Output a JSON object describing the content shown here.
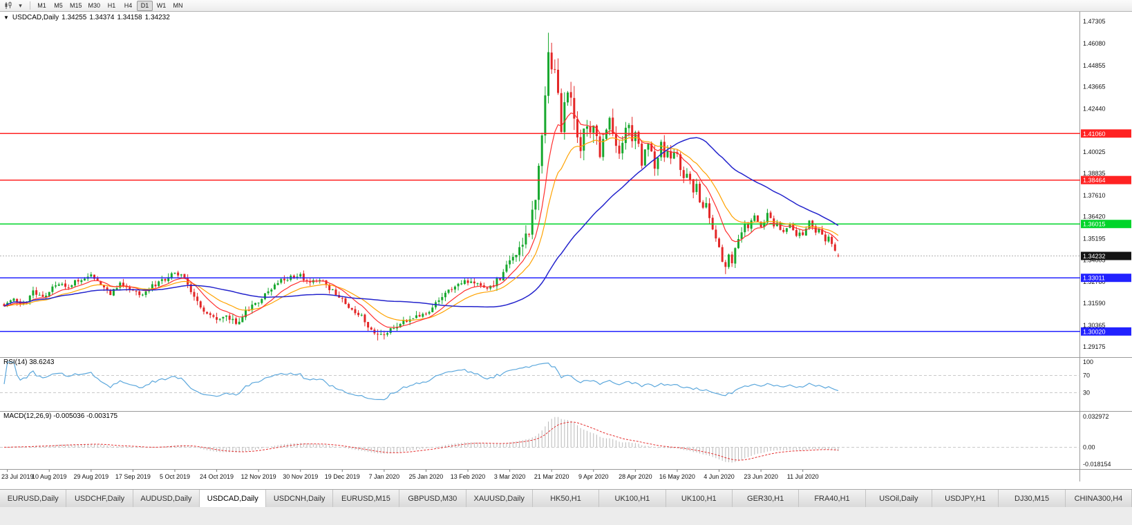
{
  "icons": {
    "dropdown": "▾",
    "one_click_arrow": "▼"
  },
  "toolbar": {
    "timeframes": [
      "M1",
      "M5",
      "M15",
      "M30",
      "H1",
      "H4",
      "D1",
      "W1",
      "MN"
    ],
    "active_timeframe": "D1"
  },
  "header": {
    "symbol_title": "USDCAD,Daily",
    "open": "1.34255",
    "high": "1.34374",
    "low": "1.34158",
    "close": "1.34232"
  },
  "colors": {
    "up": "#17a82e",
    "down": "#e32727",
    "ma_fast": "#ff2e2e",
    "ma_mid": "#ffa200",
    "ma_slow": "#2323cc",
    "rsi": "#5ba7dc",
    "macd_hist": "#b8b8b8",
    "macd_signal": "#e53030",
    "hline_red": "#ff2222",
    "hline_green": "#00d42a",
    "hline_blue": "#2222ff",
    "price_badge_bg": "#141414",
    "bid_line": "#b0b0b0"
  },
  "price_axis": {
    "labels": [
      "1.47305",
      "1.46080",
      "1.44855",
      "1.43665",
      "1.42440",
      "1.40025",
      "1.38835",
      "1.37610",
      "1.36420",
      "1.35195",
      "1.34005",
      "1.32780",
      "1.31590",
      "1.30365",
      "1.29175"
    ],
    "min": 1.2882,
    "max": 1.4762,
    "current": "1.34232",
    "current_value": 1.34232
  },
  "hlines": [
    {
      "value": 1.4106,
      "label": "1.41060",
      "color_key": "hline_red"
    },
    {
      "value": 1.38464,
      "label": "1.38464",
      "color_key": "hline_red"
    },
    {
      "value": 1.36015,
      "label": "1.36015",
      "color_key": "hline_green"
    },
    {
      "value": 1.33011,
      "label": "1.33011",
      "color_key": "hline_blue"
    },
    {
      "value": 1.3002,
      "label": "1.30020",
      "color_key": "hline_blue"
    }
  ],
  "x_axis": {
    "labels": [
      "23 Jul 2019",
      "10 Aug 2019",
      "29 Aug 2019",
      "17 Sep 2019",
      "5 Oct 2019",
      "24 Oct 2019",
      "12 Nov 2019",
      "30 Nov 2019",
      "19 Dec 2019",
      "7 Jan 2020",
      "25 Jan 2020",
      "13 Feb 2020",
      "3 Mar 2020",
      "21 Mar 2020",
      "9 Apr 2020",
      "28 Apr 2020",
      "16 May 2020",
      "4 Jun 2020",
      "23 Jun 2020",
      "11 Jul 2020"
    ],
    "label_start_bar": 1,
    "label_step_bars": 13
  },
  "rsi_panel": {
    "title": "RSI(14) 38.6243",
    "period": 14,
    "current": 38.6243,
    "axis_labels": [
      "100",
      "70",
      "30"
    ],
    "axis_values": [
      100,
      70,
      30
    ],
    "levels": [
      70,
      30
    ]
  },
  "macd_panel": {
    "title": "MACD(12,26,9) -0.005036 -0.003175",
    "fast": 12,
    "slow": 26,
    "signal": 9,
    "main_current": -0.005036,
    "signal_current": -0.003175,
    "axis_labels": [
      "0.032972",
      "0.00",
      "-0.018154"
    ]
  },
  "tabs": {
    "items": [
      "EURUSD,Daily",
      "USDCHF,Daily",
      "AUDUSD,Daily",
      "USDCAD,Daily",
      "USDCNH,Daily",
      "EURUSD,M15",
      "GBPUSD,M30",
      "XAUUSD,Daily",
      "HK50,H1",
      "UK100,H1",
      "UK100,H1",
      "GER30,H1",
      "FRA40,H1",
      "USOil,Daily",
      "USDJPY,H1",
      "DJ30,M15",
      "CHINA300,H4"
    ],
    "active_index": 3
  },
  "chart_data": {
    "type": "candlestick",
    "title": "USDCAD,Daily",
    "symbol": "USDCAD",
    "timeframe": "Daily",
    "bars": 260,
    "price_range": [
      1.2882,
      1.4762
    ],
    "extreme_high": 1.4668,
    "extreme_low": 1.2952,
    "ohlc_last": {
      "open": 1.34255,
      "high": 1.34374,
      "low": 1.34158,
      "close": 1.34232
    },
    "support_resistance": [
      1.4106,
      1.38464,
      1.36015,
      1.33011,
      1.3002
    ],
    "date_labels": [
      "23 Jul 2019",
      "10 Aug 2019",
      "29 Aug 2019",
      "17 Sep 2019",
      "5 Oct 2019",
      "24 Oct 2019",
      "12 Nov 2019",
      "30 Nov 2019",
      "19 Dec 2019",
      "7 Jan 2020",
      "25 Jan 2020",
      "13 Feb 2020",
      "3 Mar 2020",
      "21 Mar 2020",
      "9 Apr 2020",
      "28 Apr 2020",
      "16 May 2020",
      "4 Jun 2020",
      "23 Jun 2020",
      "11 Jul 2020"
    ],
    "close_waypoints": [
      [
        0,
        1.314
      ],
      [
        3,
        1.3185
      ],
      [
        6,
        1.3155
      ],
      [
        9,
        1.322
      ],
      [
        12,
        1.3195
      ],
      [
        14,
        1.3235
      ],
      [
        17,
        1.3275
      ],
      [
        20,
        1.3245
      ],
      [
        23,
        1.3292
      ],
      [
        27,
        1.332
      ],
      [
        30,
        1.325
      ],
      [
        33,
        1.3215
      ],
      [
        36,
        1.327
      ],
      [
        40,
        1.323
      ],
      [
        43,
        1.3205
      ],
      [
        46,
        1.3252
      ],
      [
        50,
        1.329
      ],
      [
        53,
        1.3332
      ],
      [
        56,
        1.3295
      ],
      [
        59,
        1.32
      ],
      [
        62,
        1.311
      ],
      [
        66,
        1.3055
      ],
      [
        69,
        1.3078
      ],
      [
        72,
        1.3048
      ],
      [
        75,
        1.311
      ],
      [
        79,
        1.3172
      ],
      [
        82,
        1.323
      ],
      [
        85,
        1.3282
      ],
      [
        88,
        1.33
      ],
      [
        92,
        1.3312
      ],
      [
        95,
        1.3272
      ],
      [
        98,
        1.33
      ],
      [
        101,
        1.3242
      ],
      [
        105,
        1.3178
      ],
      [
        108,
        1.313
      ],
      [
        111,
        1.3082
      ],
      [
        114,
        1.3012
      ],
      [
        116,
        1.2972
      ],
      [
        118,
        1.2988
      ],
      [
        121,
        1.3022
      ],
      [
        124,
        1.3056
      ],
      [
        127,
        1.3082
      ],
      [
        131,
        1.3106
      ],
      [
        134,
        1.3152
      ],
      [
        137,
        1.3206
      ],
      [
        140,
        1.3252
      ],
      [
        144,
        1.3286
      ],
      [
        147,
        1.3262
      ],
      [
        150,
        1.3236
      ],
      [
        153,
        1.3282
      ],
      [
        155,
        1.333
      ],
      [
        157,
        1.3392
      ],
      [
        159,
        1.3424
      ],
      [
        161,
        1.3482
      ],
      [
        163,
        1.3562
      ],
      [
        165,
        1.3752
      ],
      [
        166,
        1.3902
      ],
      [
        167,
        1.4082
      ],
      [
        168,
        1.4352
      ],
      [
        169,
        1.4562
      ],
      [
        170,
        1.4422
      ],
      [
        171,
        1.4492
      ],
      [
        172,
        1.4302
      ],
      [
        173,
        1.4152
      ],
      [
        174,
        1.4242
      ],
      [
        175,
        1.4362
      ],
      [
        176,
        1.4282
      ],
      [
        177,
        1.4192
      ],
      [
        178,
        1.4092
      ],
      [
        179,
        1.4022
      ],
      [
        180,
        1.4102
      ],
      [
        181,
        1.4172
      ],
      [
        182,
        1.4092
      ],
      [
        183,
        1.4162
      ],
      [
        184,
        1.4062
      ],
      [
        185,
        1.3992
      ],
      [
        186,
        1.4062
      ],
      [
        187,
        1.4142
      ],
      [
        188,
        1.4202
      ],
      [
        189,
        1.4102
      ],
      [
        190,
        1.4032
      ],
      [
        191,
        1.3972
      ],
      [
        192,
        1.4052
      ],
      [
        193,
        1.4112
      ],
      [
        194,
        1.4172
      ],
      [
        195,
        1.4082
      ],
      [
        196,
        1.4112
      ],
      [
        197,
        1.4022
      ],
      [
        198,
        1.3952
      ],
      [
        199,
        1.4012
      ],
      [
        200,
        1.4072
      ],
      [
        201,
        1.3992
      ],
      [
        202,
        1.3932
      ],
      [
        203,
        1.3992
      ],
      [
        204,
        1.4052
      ],
      [
        205,
        1.3982
      ],
      [
        206,
        1.4022
      ],
      [
        207,
        1.3962
      ],
      [
        208,
        1.4012
      ],
      [
        209,
        1.3982
      ],
      [
        210,
        1.3922
      ],
      [
        211,
        1.3862
      ],
      [
        212,
        1.3902
      ],
      [
        213,
        1.3832
      ],
      [
        214,
        1.3772
      ],
      [
        215,
        1.3812
      ],
      [
        216,
        1.3742
      ],
      [
        217,
        1.3682
      ],
      [
        218,
        1.3722
      ],
      [
        219,
        1.3652
      ],
      [
        220,
        1.3582
      ],
      [
        221,
        1.353
      ],
      [
        222,
        1.3462
      ],
      [
        223,
        1.3402
      ],
      [
        224,
        1.3372
      ],
      [
        225,
        1.3422
      ],
      [
        226,
        1.3392
      ],
      [
        227,
        1.3452
      ],
      [
        228,
        1.3512
      ],
      [
        229,
        1.3562
      ],
      [
        230,
        1.3602
      ],
      [
        231,
        1.3562
      ],
      [
        232,
        1.3612
      ],
      [
        233,
        1.3662
      ],
      [
        234,
        1.3612
      ],
      [
        235,
        1.3572
      ],
      [
        236,
        1.3622
      ],
      [
        237,
        1.3662
      ],
      [
        238,
        1.3632
      ],
      [
        239,
        1.3592
      ],
      [
        240,
        1.3622
      ],
      [
        241,
        1.3582
      ],
      [
        242,
        1.3546
      ],
      [
        243,
        1.3582
      ],
      [
        244,
        1.3612
      ],
      [
        245,
        1.3572
      ],
      [
        246,
        1.3542
      ],
      [
        247,
        1.3562
      ],
      [
        248,
        1.3542
      ],
      [
        249,
        1.3582
      ],
      [
        250,
        1.3612
      ],
      [
        251,
        1.3582
      ],
      [
        252,
        1.3552
      ],
      [
        253,
        1.3576
      ],
      [
        254,
        1.3542
      ],
      [
        255,
        1.3512
      ],
      [
        256,
        1.3532
      ],
      [
        257,
        1.3492
      ],
      [
        258,
        1.3452
      ],
      [
        259,
        1.34232
      ]
    ],
    "volatility_waypoints": [
      [
        0,
        0.0045
      ],
      [
        55,
        0.0045
      ],
      [
        66,
        0.0052
      ],
      [
        100,
        0.004
      ],
      [
        116,
        0.0052
      ],
      [
        150,
        0.0045
      ],
      [
        158,
        0.0085
      ],
      [
        165,
        0.014
      ],
      [
        172,
        0.015
      ],
      [
        185,
        0.011
      ],
      [
        200,
        0.0085
      ],
      [
        212,
        0.007
      ],
      [
        225,
        0.0065
      ],
      [
        240,
        0.0048
      ],
      [
        259,
        0.004
      ]
    ],
    "wick_overrides": [
      {
        "bar": 169,
        "high": 1.4668
      },
      {
        "bar": 116,
        "low": 1.2952
      },
      {
        "bar": 224,
        "low": 1.3322
      }
    ],
    "moving_averages": [
      {
        "name": "fast",
        "type": "ema",
        "period": 10,
        "color_key": "ma_fast"
      },
      {
        "name": "mid",
        "type": "ema",
        "period": 20,
        "color_key": "ma_mid"
      },
      {
        "name": "slow",
        "type": "sma",
        "period": 50,
        "color_key": "ma_slow"
      }
    ],
    "indicators": [
      {
        "name": "RSI",
        "params": [
          14
        ],
        "current": 38.6243
      },
      {
        "name": "MACD",
        "params": [
          12,
          26,
          9
        ],
        "current_main": -0.005036,
        "current_signal": -0.003175
      }
    ]
  }
}
